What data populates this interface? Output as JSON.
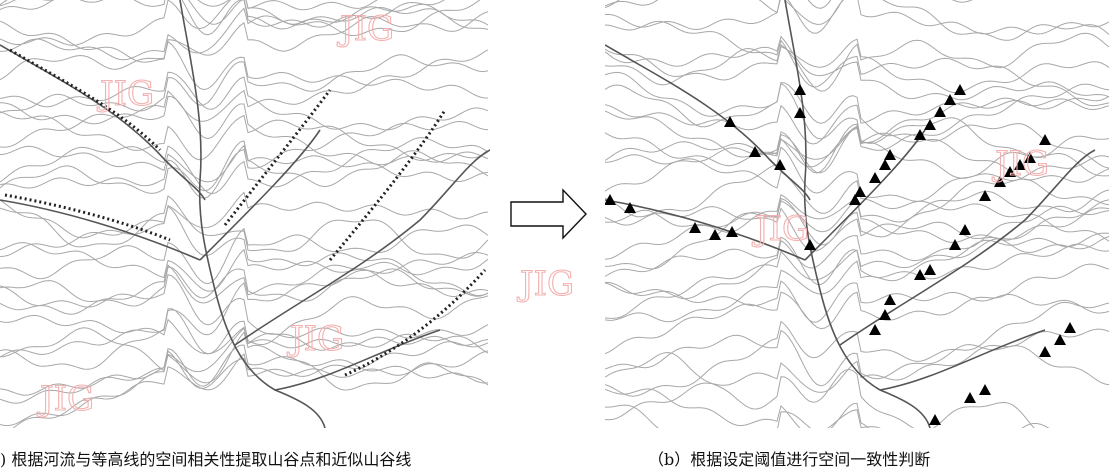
{
  "captions": {
    "a": ") 根据河流与等高线的空间相关性提取山谷点和近似山谷线",
    "b": "（b）根据设定阈值进行空间一致性判断"
  },
  "watermarks": [
    "JIG",
    "JIG",
    "JIG",
    "JIG",
    "JIG",
    "JIG",
    "JIG"
  ]
}
